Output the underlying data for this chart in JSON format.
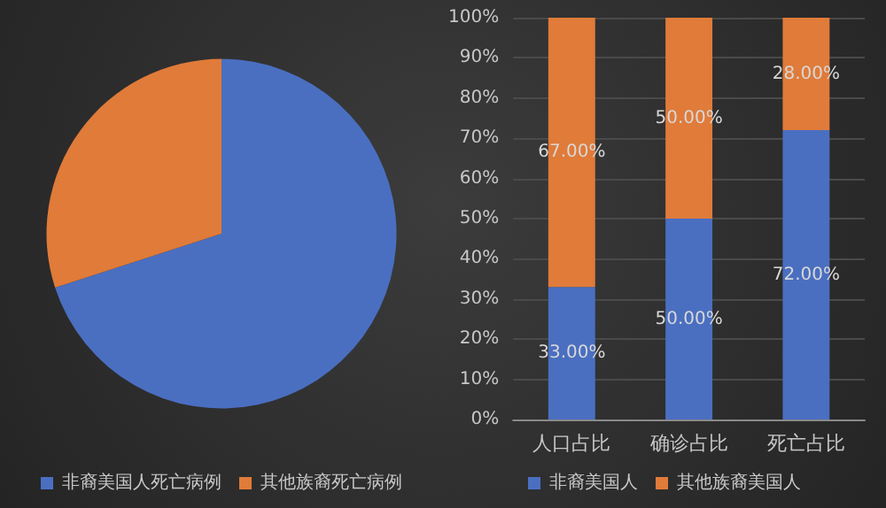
{
  "chart_data": [
    {
      "type": "pie",
      "categories": [
        "非裔美国人死亡病例",
        "其他族裔死亡病例"
      ],
      "values": [
        70,
        30
      ],
      "colors": [
        "#4a6fc1",
        "#e07b39"
      ],
      "legend": "bottom"
    },
    {
      "type": "bar",
      "stacked": true,
      "categories": [
        "人口占比",
        "确诊占比",
        "死亡占比"
      ],
      "series": [
        {
          "name": "非裔美国人",
          "color": "#4a6fc1",
          "values": [
            33,
            50,
            72
          ],
          "value_labels": [
            "33.00%",
            "50.00%",
            "72.00%"
          ]
        },
        {
          "name": "其他族裔美国人",
          "color": "#e07b39",
          "values": [
            67,
            50,
            28
          ],
          "value_labels": [
            "67.00%",
            "50.00%",
            "28.00%"
          ]
        }
      ],
      "ylim": [
        0,
        100
      ],
      "yticks": [
        {
          "value": 0,
          "label": "0%"
        },
        {
          "value": 10,
          "label": "10%"
        },
        {
          "value": 20,
          "label": "20%"
        },
        {
          "value": 30,
          "label": "30%"
        },
        {
          "value": 40,
          "label": "40%"
        },
        {
          "value": 50,
          "label": "50%"
        },
        {
          "value": 60,
          "label": "60%"
        },
        {
          "value": 70,
          "label": "70%"
        },
        {
          "value": 80,
          "label": "80%"
        },
        {
          "value": 90,
          "label": "90%"
        },
        {
          "value": 100,
          "label": "100%"
        }
      ],
      "grid": "y",
      "legend": "bottom"
    }
  ]
}
